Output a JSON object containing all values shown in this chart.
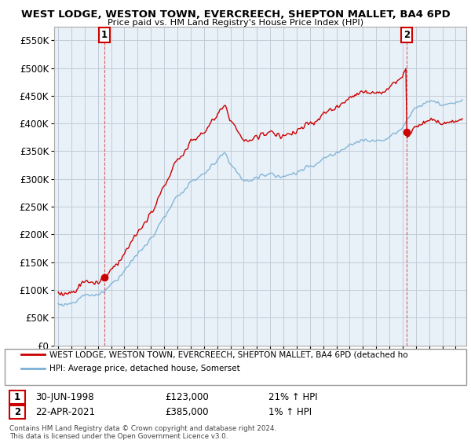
{
  "title": "WEST LODGE, WESTON TOWN, EVERCREECH, SHEPTON MALLET, BA4 6PD",
  "subtitle": "Price paid vs. HM Land Registry's House Price Index (HPI)",
  "sale1_date": "30-JUN-1998",
  "sale1_price": 123000,
  "sale1_hpi": "21% ↑ HPI",
  "sale1_label": "1",
  "sale2_date": "22-APR-2021",
  "sale2_price": 385000,
  "sale2_hpi": "1% ↑ HPI",
  "sale2_label": "2",
  "legend_red": "WEST LODGE, WESTON TOWN, EVERCREECH, SHEPTON MALLET, BA4 6PD (detached ho",
  "legend_blue": "HPI: Average price, detached house, Somerset",
  "footer": "Contains HM Land Registry data © Crown copyright and database right 2024.\nThis data is licensed under the Open Government Licence v3.0.",
  "red_color": "#cc0000",
  "blue_color": "#7ab0d4",
  "plot_bg": "#e8f0f8",
  "ylim": [
    0,
    575000
  ],
  "yticks": [
    0,
    50000,
    100000,
    150000,
    200000,
    250000,
    300000,
    350000,
    400000,
    450000,
    500000,
    550000
  ],
  "background_color": "#ffffff",
  "grid_color": "#c0ccd8",
  "sale1_year": 1998.5,
  "sale2_year": 2021.29
}
